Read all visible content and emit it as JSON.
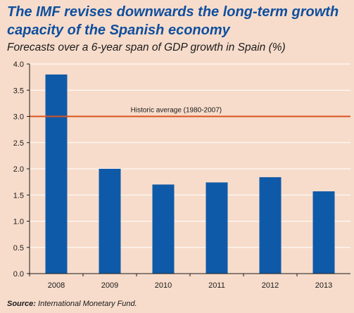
{
  "title": "The IMF revises downwards the long-term growth capacity of the Spanish economy",
  "subtitle": "Forecasts over a 6-year span of GDP growth in Spain (%)",
  "source": {
    "label": "Source:",
    "text": "International Monetary Fund."
  },
  "colors": {
    "background": "#f7dccb",
    "bar": "#0f5aa8",
    "title": "#0f4f9e",
    "reference_line": "#d9531e",
    "gridline": "#ffffff"
  },
  "chart_data": {
    "type": "bar",
    "categories": [
      "2008",
      "2009",
      "2010",
      "2011",
      "2012",
      "2013"
    ],
    "values": [
      3.8,
      2.0,
      1.7,
      1.74,
      1.84,
      1.57
    ],
    "ylim": [
      0,
      4.0
    ],
    "yticks": [
      "0.0",
      "0.5",
      "1.0",
      "1.5",
      "2.0",
      "2.5",
      "3.0",
      "3.5",
      "4.0"
    ],
    "ytick_values": [
      0,
      0.5,
      1.0,
      1.5,
      2.0,
      2.5,
      3.0,
      3.5,
      4.0
    ],
    "grid": true,
    "xlabel": "",
    "ylabel": "",
    "reference_line": {
      "value": 3.0,
      "label": "Historic average (1980-2007)"
    }
  }
}
